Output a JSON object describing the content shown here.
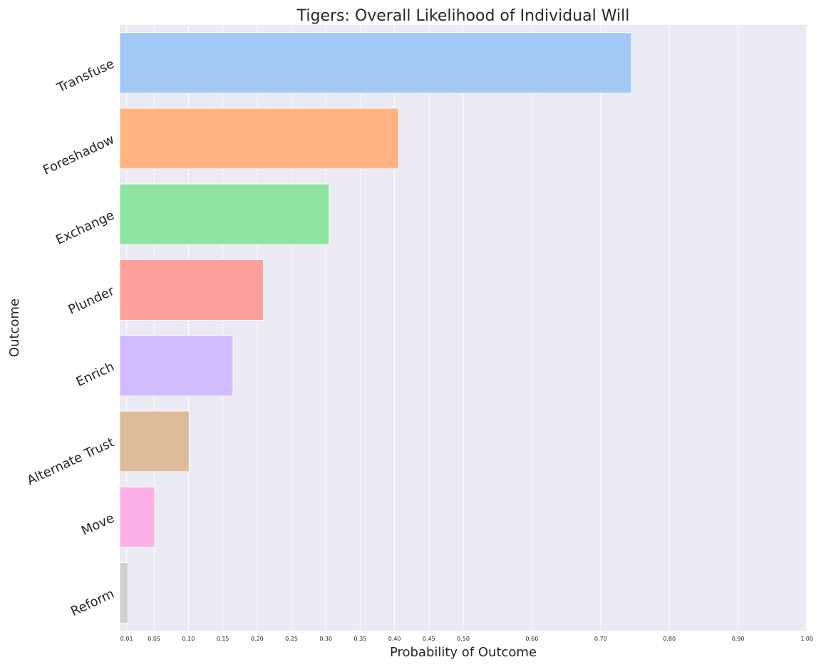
{
  "chart_data": {
    "type": "bar",
    "orientation": "horizontal",
    "title": "Tigers: Overall Likelihood of Individual Will",
    "xlabel": "Probability of Outcome",
    "ylabel": "Outcome",
    "categories": [
      "Transfuse",
      "Foreshadow",
      "Exchange",
      "Plunder",
      "Enrich",
      "Alternate Trust",
      "Move",
      "Reform"
    ],
    "values": [
      0.745,
      0.406,
      0.305,
      0.209,
      0.165,
      0.101,
      0.051,
      0.012
    ],
    "colors": [
      "#a1c9f4",
      "#ffb482",
      "#8de5a1",
      "#ff9f9b",
      "#d0bbff",
      "#debb9b",
      "#fab0e4",
      "#cfcfcf"
    ],
    "xticks": [
      0.01,
      0.05,
      0.1,
      0.15,
      0.2,
      0.25,
      0.3,
      0.35,
      0.4,
      0.45,
      0.5,
      0.6,
      0.7,
      0.8,
      0.9,
      1.0
    ],
    "xtick_labels": [
      "0.01",
      "0.05",
      "0.10",
      "0.15",
      "0.20",
      "0.25",
      "0.30",
      "0.35",
      "0.40",
      "0.45",
      "0.50",
      "0.60",
      "0.70",
      "0.80",
      "0.90",
      "1.00"
    ],
    "xlim": [
      0,
      1.0
    ],
    "grid": true,
    "background": "#eaeaf2"
  }
}
